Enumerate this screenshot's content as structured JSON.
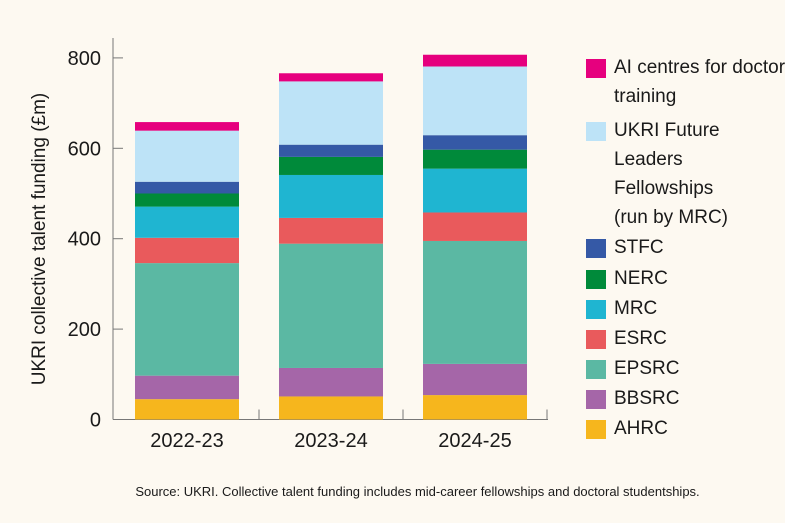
{
  "chart_data": {
    "type": "bar",
    "stacked": true,
    "ylabel": "UKRI collective talent funding (£m)",
    "xlabel": "",
    "ylim": [
      0,
      850
    ],
    "yticks": [
      0,
      200,
      400,
      600,
      800
    ],
    "grid": false,
    "legend_placement": "right",
    "categories": [
      "2022-23",
      "2023-24",
      "2024-25"
    ],
    "series": [
      {
        "name": "AHRC",
        "color": "#f6b61d",
        "values": [
          45,
          51,
          54
        ]
      },
      {
        "name": "BBSRC",
        "color": "#a566a8",
        "values": [
          52,
          63,
          69
        ]
      },
      {
        "name": "EPSRC",
        "color": "#5bb8a3",
        "values": [
          249,
          275,
          272
        ]
      },
      {
        "name": "ESRC",
        "color": "#e95a5c",
        "values": [
          56,
          57,
          63
        ]
      },
      {
        "name": "MRC",
        "color": "#1fb5d1",
        "values": [
          69,
          95,
          97
        ]
      },
      {
        "name": "NERC",
        "color": "#008a3a",
        "values": [
          29,
          40,
          42
        ]
      },
      {
        "name": "STFC",
        "color": "#3559a6",
        "values": [
          26,
          27,
          32
        ]
      },
      {
        "name": "UKRI Future Leaders Fellowships (run by MRC)",
        "color": "#bde3f7",
        "values": [
          113,
          140,
          152
        ]
      },
      {
        "name": "AI centres for doctoral training",
        "color": "#e6007e",
        "values": [
          19,
          18,
          26
        ]
      }
    ]
  },
  "source": "Source: UKRI. Collective talent funding includes mid-career fellowships and doctoral studentships."
}
